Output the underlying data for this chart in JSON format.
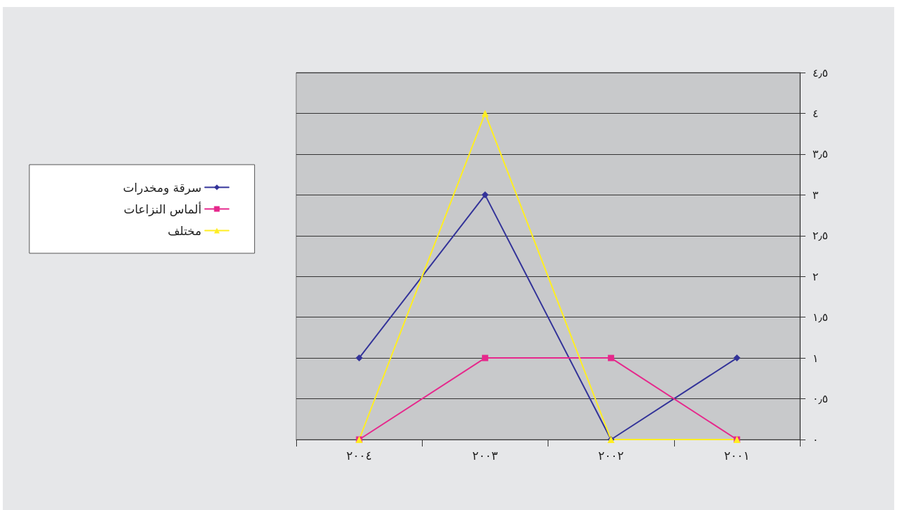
{
  "chart_data": {
    "type": "line",
    "categories": [
      "٢٠٠٤",
      "٢٠٠٣",
      "٢٠٠٢",
      "٢٠٠١"
    ],
    "series": [
      {
        "name": "سرقة ومخدرات",
        "color": "#333399",
        "marker": "diamond",
        "values": [
          1,
          3,
          0,
          1
        ]
      },
      {
        "name": "ألماس النزاعات",
        "color": "#e6288c",
        "marker": "square",
        "values": [
          0,
          1,
          1,
          0
        ]
      },
      {
        "name": "مختلف",
        "color": "#ffee22",
        "marker": "triangle",
        "values": [
          0,
          4,
          0,
          0
        ]
      }
    ],
    "ylim": [
      0,
      4.5
    ],
    "yticks": [
      {
        "value": 0,
        "label": "٠"
      },
      {
        "value": 0.5,
        "label": "٠٫٥"
      },
      {
        "value": 1,
        "label": "١"
      },
      {
        "value": 1.5,
        "label": "١٫٥"
      },
      {
        "value": 2,
        "label": "٢"
      },
      {
        "value": 2.5,
        "label": "٢٫٥"
      },
      {
        "value": 3,
        "label": "٣"
      },
      {
        "value": 3.5,
        "label": "٣٫٥"
      },
      {
        "value": 4,
        "label": "٤"
      },
      {
        "value": 4.5,
        "label": "٤٫٥"
      }
    ],
    "grid": "y",
    "legend": "left",
    "line_style": "solid"
  }
}
